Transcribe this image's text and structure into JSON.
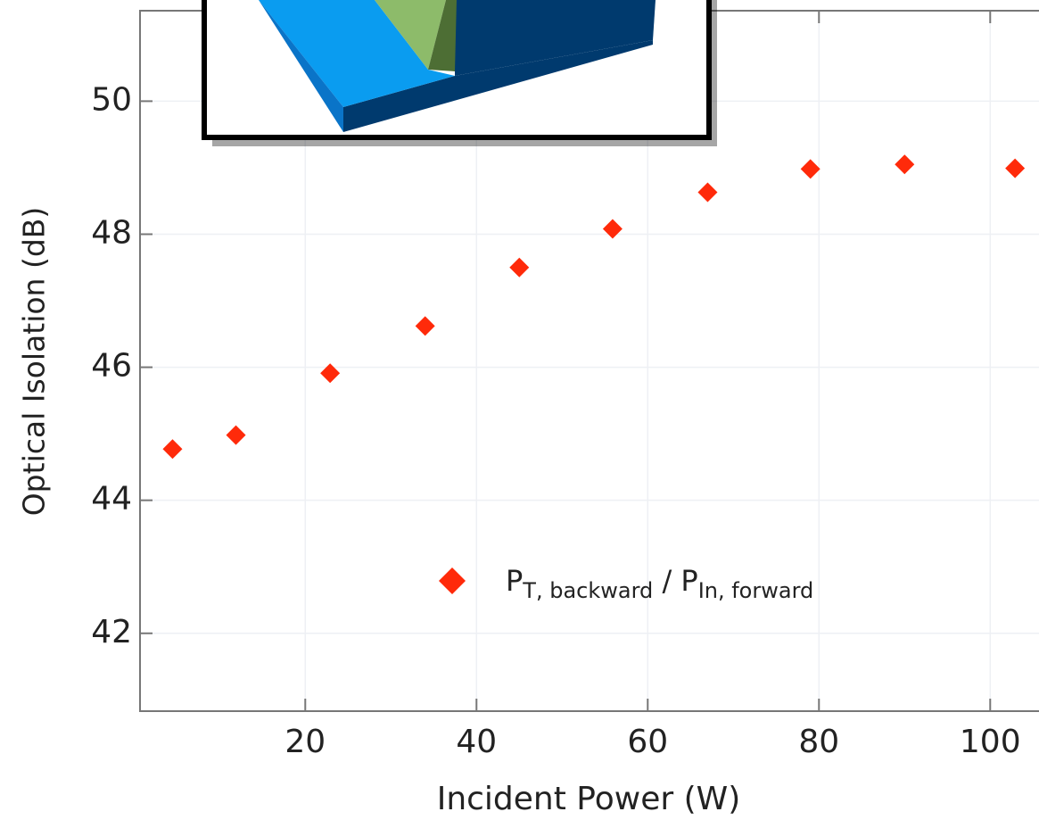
{
  "chart_data": {
    "type": "scatter",
    "x_label": "Incident Power (W)",
    "y_label": "Optical Isolation (dB)",
    "xlim": [
      0.7,
      105.7
    ],
    "xticks": [
      20,
      40,
      60,
      80,
      100
    ],
    "ylim": [
      40.83,
      51.36
    ],
    "yticks": [
      42,
      44,
      46,
      48,
      50
    ],
    "grid": true,
    "series": [
      {
        "name": [
          {
            "text": "P"
          },
          {
            "text": "T, backward",
            "sub": true
          },
          {
            "text": " / P"
          },
          {
            "text": "In, forward",
            "sub": true
          }
        ],
        "color": "#ff2a0a",
        "x": [
          4.5,
          11.9,
          22.9,
          34.0,
          45.0,
          55.9,
          67.0,
          79.0,
          90.0,
          102.9
        ],
        "values": [
          44.77,
          44.98,
          45.91,
          46.62,
          47.5,
          48.08,
          48.63,
          48.98,
          49.05,
          48.99
        ]
      }
    ]
  }
}
